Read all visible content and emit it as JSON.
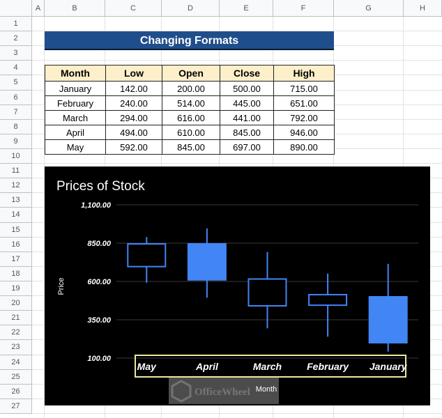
{
  "sheet": {
    "columns": [
      "A",
      "B",
      "C",
      "D",
      "E",
      "F",
      "G",
      "H"
    ],
    "rows": [
      "1",
      "2",
      "3",
      "4",
      "5",
      "6",
      "7",
      "8",
      "9",
      "10",
      "11",
      "12",
      "13",
      "14",
      "15",
      "16",
      "17",
      "18",
      "19",
      "20",
      "21",
      "22",
      "23",
      "24",
      "25",
      "26",
      "27"
    ]
  },
  "title": "Changing Formats",
  "table": {
    "headers": [
      "Month",
      "Low",
      "Open",
      "Close",
      "High"
    ],
    "rows": [
      [
        "January",
        "142.00",
        "200.00",
        "500.00",
        "715.00"
      ],
      [
        "February",
        "240.00",
        "514.00",
        "445.00",
        "651.00"
      ],
      [
        "March",
        "294.00",
        "616.00",
        "441.00",
        "792.00"
      ],
      [
        "April",
        "494.00",
        "610.00",
        "845.00",
        "946.00"
      ],
      [
        "May",
        "592.00",
        "845.00",
        "697.00",
        "890.00"
      ]
    ]
  },
  "chart_data": {
    "type": "candlestick",
    "title": "Prices of Stock",
    "xlabel": "Month",
    "ylabel": "Price",
    "categories": [
      "May",
      "April",
      "March",
      "February",
      "January"
    ],
    "yticks": [
      "1,100.00",
      "850.00",
      "600.00",
      "350.00",
      "100.00"
    ],
    "ylim": [
      100,
      1100
    ],
    "series": [
      {
        "x": "May",
        "low": 592,
        "open": 845,
        "close": 697,
        "high": 890
      },
      {
        "x": "April",
        "low": 494,
        "open": 610,
        "close": 845,
        "high": 946
      },
      {
        "x": "March",
        "low": 294,
        "open": 616,
        "close": 441,
        "high": 792
      },
      {
        "x": "February",
        "low": 240,
        "open": 514,
        "close": 445,
        "high": 651
      },
      {
        "x": "January",
        "low": 142,
        "open": 200,
        "close": 500,
        "high": 715
      }
    ],
    "grid": true,
    "background": "#000000",
    "candle_color": "#4285f4",
    "text_color": "#ffffff"
  },
  "watermark": "OfficeWheel"
}
